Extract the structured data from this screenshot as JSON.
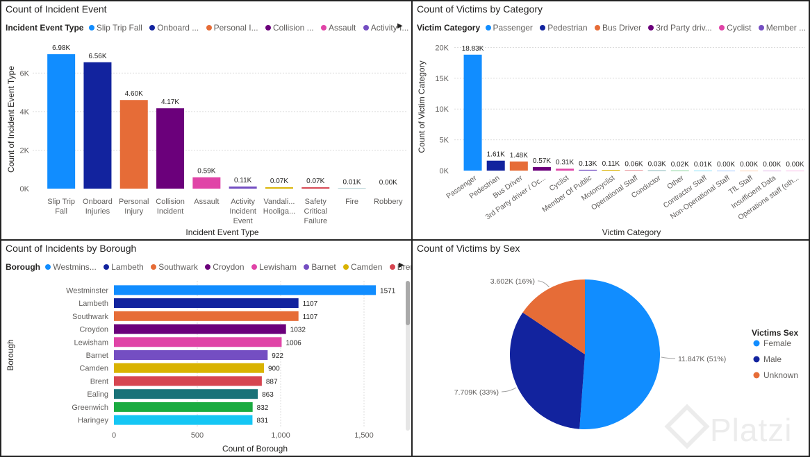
{
  "panels": {
    "incident_event": {
      "title": "Count of Incident Event",
      "legend_title": "Incident Event Type",
      "legend_items": [
        {
          "label": "Slip Trip Fall",
          "color": "#118DFF"
        },
        {
          "label": "Onboard ...",
          "color": "#12239E"
        },
        {
          "label": "Personal I...",
          "color": "#E66C37"
        },
        {
          "label": "Collision ...",
          "color": "#6B007B"
        },
        {
          "label": "Assault",
          "color": "#E044A7"
        },
        {
          "label": "Activity I...",
          "color": "#744EC2"
        }
      ]
    },
    "victim_category": {
      "title": "Count of Victims by Category",
      "legend_title": "Victim Category",
      "legend_items": [
        {
          "label": "Passenger",
          "color": "#118DFF"
        },
        {
          "label": "Pedestrian",
          "color": "#12239E"
        },
        {
          "label": "Bus Driver",
          "color": "#E66C37"
        },
        {
          "label": "3rd Party driv...",
          "color": "#6B007B"
        },
        {
          "label": "Cyclist",
          "color": "#E044A7"
        },
        {
          "label": "Member ...",
          "color": "#744EC2"
        }
      ]
    },
    "borough": {
      "title": "Count of Incidents by Borough",
      "legend_title": "Borough",
      "legend_items": [
        {
          "label": "Westmins...",
          "color": "#118DFF"
        },
        {
          "label": "Lambeth",
          "color": "#12239E"
        },
        {
          "label": "Southwark",
          "color": "#E66C37"
        },
        {
          "label": "Croydon",
          "color": "#6B007B"
        },
        {
          "label": "Lewisham",
          "color": "#E044A7"
        },
        {
          "label": "Barnet",
          "color": "#744EC2"
        },
        {
          "label": "Camden",
          "color": "#D9B300"
        },
        {
          "label": "Brent",
          "color": "#D64550"
        }
      ]
    },
    "victims_sex": {
      "title": "Count of Victims by Sex",
      "legend_title": "Victims Sex"
    }
  },
  "watermark": {
    "text": "Platzi"
  },
  "chart_data": [
    {
      "type": "bar",
      "title": "Count of Incident Event",
      "xlabel": "Incident Event Type",
      "ylabel": "Count of Incident Event Type",
      "ylim": [
        0,
        7200
      ],
      "yticks": [
        {
          "value": 0,
          "label": "0K"
        },
        {
          "value": 2000,
          "label": "2K"
        },
        {
          "value": 4000,
          "label": "4K"
        },
        {
          "value": 6000,
          "label": "6K"
        }
      ],
      "categories": [
        [
          "Slip Trip",
          "Fall"
        ],
        [
          "Onboard",
          "Injuries"
        ],
        [
          "Personal",
          "Injury"
        ],
        [
          "Collision",
          "Incident"
        ],
        [
          "Assault"
        ],
        [
          "Activity",
          "Incident",
          "Event"
        ],
        [
          "Vandali...",
          "Hooliga..."
        ],
        [
          "Safety",
          "Critical",
          "Failure"
        ],
        [
          "Fire"
        ],
        [
          "Robbery"
        ]
      ],
      "values": [
        6980,
        6560,
        4600,
        4170,
        590,
        110,
        70,
        70,
        10,
        0
      ],
      "data_labels": [
        "6.98K",
        "6.56K",
        "4.60K",
        "4.17K",
        "0.59K",
        "0.11K",
        "0.07K",
        "0.07K",
        "0.01K",
        "0.00K"
      ],
      "colors": [
        "#118DFF",
        "#12239E",
        "#E66C37",
        "#6B007B",
        "#E044A7",
        "#744EC2",
        "#D9B300",
        "#D64550",
        "#197278",
        "#1AAB40"
      ]
    },
    {
      "type": "bar",
      "title": "Count of Victims by Category",
      "xlabel": "Victim Category",
      "ylabel": "Count of Victim Category",
      "ylim": [
        0,
        20500
      ],
      "yticks": [
        {
          "value": 0,
          "label": "0K"
        },
        {
          "value": 5000,
          "label": "5K"
        },
        {
          "value": 10000,
          "label": "10K"
        },
        {
          "value": 15000,
          "label": "15K"
        },
        {
          "value": 20000,
          "label": "20K"
        }
      ],
      "categories": [
        "Passenger",
        "Pedestrian",
        "Bus Driver",
        "3rd Party driver / Oc...",
        "Cyclist",
        "Member Of Public",
        "Motorcyclist",
        "Operational Staff",
        "Conductor",
        "Other",
        "Contractor Staff",
        "Non-Operational Staff",
        "TfL Staff",
        "Insufficient Data",
        "Operations staff (oth..."
      ],
      "values": [
        18830,
        1610,
        1480,
        570,
        310,
        130,
        110,
        60,
        30,
        20,
        10,
        0,
        0,
        0,
        0
      ],
      "data_labels": [
        "18.83K",
        "1.61K",
        "1.48K",
        "0.57K",
        "0.31K",
        "0.13K",
        "0.11K",
        "0.06K",
        "0.03K",
        "0.02K",
        "0.01K",
        "0.00K",
        "0.00K",
        "0.00K",
        "0.00K"
      ],
      "colors": [
        "#118DFF",
        "#12239E",
        "#E66C37",
        "#6B007B",
        "#E044A7",
        "#744EC2",
        "#D9B300",
        "#D64550",
        "#197278",
        "#1AAB40",
        "#15C6F4",
        "#4092FF",
        "#FFA058",
        "#BE5DC9",
        "#F472D0"
      ]
    },
    {
      "type": "bar",
      "orientation": "horizontal",
      "title": "Count of Incidents by Borough",
      "xlabel": "Count of Borough",
      "ylabel": "Borough",
      "xlim": [
        0,
        1700
      ],
      "xticks": [
        {
          "value": 0,
          "label": "0"
        },
        {
          "value": 500,
          "label": "500"
        },
        {
          "value": 1000,
          "label": "1,000"
        },
        {
          "value": 1500,
          "label": "1,500"
        }
      ],
      "categories": [
        "Westminster",
        "Lambeth",
        "Southwark",
        "Croydon",
        "Lewisham",
        "Barnet",
        "Camden",
        "Brent",
        "Ealing",
        "Greenwich",
        "Haringey"
      ],
      "values": [
        1571,
        1107,
        1107,
        1032,
        1006,
        922,
        900,
        887,
        863,
        832,
        831
      ],
      "data_labels": [
        "1571",
        "1107",
        "1107",
        "1032",
        "1006",
        "922",
        "900",
        "887",
        "863",
        "832",
        "831"
      ],
      "colors": [
        "#118DFF",
        "#12239E",
        "#E66C37",
        "#6B007B",
        "#E044A7",
        "#744EC2",
        "#D9B300",
        "#D64550",
        "#197278",
        "#1AAB40",
        "#15C6F4"
      ]
    },
    {
      "type": "pie",
      "title": "Count of Victims by Sex",
      "legend_title": "Victims Sex",
      "labels": [
        "Female",
        "Male",
        "Unknown"
      ],
      "values": [
        11847,
        7709,
        3602
      ],
      "data_labels": [
        "11.847K (51%)",
        "7.709K (33%)",
        "3.602K (16%)"
      ],
      "colors": [
        "#118DFF",
        "#12239E",
        "#E66C37"
      ]
    }
  ]
}
